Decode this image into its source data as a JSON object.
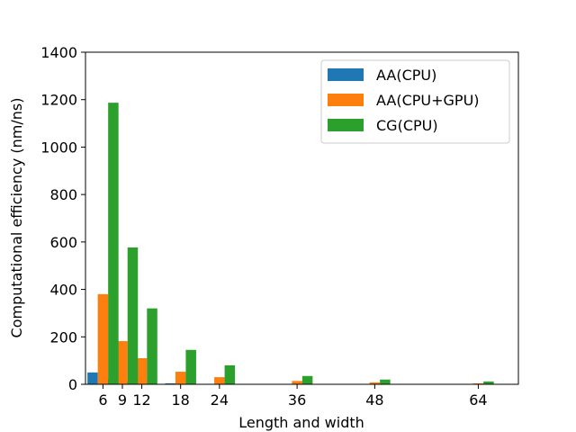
{
  "chart_data": {
    "type": "bar",
    "title": "",
    "xlabel": "Length and width",
    "ylabel": "Computational efficiency (nm/ns)",
    "ylim": [
      0,
      1400
    ],
    "yticks": [
      0,
      200,
      400,
      600,
      800,
      1000,
      1200,
      1400
    ],
    "x": [
      6,
      9,
      12,
      18,
      24,
      36,
      48,
      64
    ],
    "categories": [
      "6",
      "9",
      "12",
      "18",
      "24",
      "36",
      "48",
      "64"
    ],
    "grid": false,
    "legend_position": "top-right",
    "series": [
      {
        "name": "AA(CPU)",
        "color": "#1f77b4",
        "values": [
          50,
          22,
          12,
          4,
          2,
          0.8,
          0.4,
          0.2
        ]
      },
      {
        "name": "AA(CPU+GPU)",
        "color": "#ff7f0e",
        "values": [
          380,
          182,
          110,
          53,
          30,
          14,
          8,
          4
        ]
      },
      {
        "name": "CG(CPU)",
        "color": "#2ca02c",
        "values": [
          1187,
          577,
          320,
          145,
          80,
          35,
          20,
          12
        ]
      }
    ]
  }
}
